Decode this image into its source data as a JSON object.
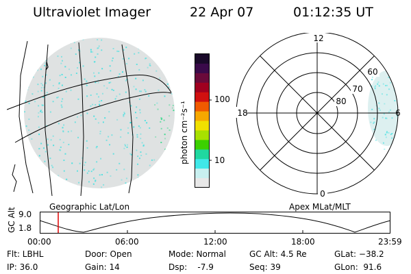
{
  "header": {
    "instrument": "Ultraviolet Imager",
    "date": "22 Apr 07",
    "time": "01:12:35 UT"
  },
  "colorbar": {
    "unit_label": "photon cm⁻²s⁻¹",
    "ticks": [
      "100",
      "10"
    ],
    "colors": [
      "#1a0a2a",
      "#3a0a4a",
      "#6a0a3a",
      "#a00020",
      "#d01010",
      "#f05a00",
      "#f6a800",
      "#f0e000",
      "#a8e000",
      "#3cd000",
      "#20d8a0",
      "#40e8e8",
      "#c8f0f0",
      "#e8e8e8"
    ]
  },
  "left_panel": {
    "caption": "Geographic Lat/Lon"
  },
  "right_panel": {
    "caption": "Apex MLat/MLT",
    "mlt_labels": {
      "top": "12",
      "left": "18",
      "right": "6",
      "bottom": "0"
    },
    "lat_labels": [
      "60",
      "70",
      "80"
    ]
  },
  "altitude_plot": {
    "ylabel": "GC Alt",
    "yticks": [
      "9.0",
      "1.8"
    ],
    "xticks": [
      "00:00",
      "06:00",
      "12:00",
      "18:00",
      "23:59"
    ],
    "current_marker_time": "01:12:35"
  },
  "status": {
    "row1": {
      "filter": "Flt: LBHL",
      "door": "Door: Open",
      "mode": "Mode: Normal",
      "gc_alt": "GC Alt: 4.5 Re",
      "glat": "GLat: −38.2"
    },
    "row2": {
      "ip": "IP: 36.0",
      "gain": "Gain: 14",
      "dsp": "Dsp:    -7.9",
      "seq": "Seq: 39",
      "glon": "GLon:  91.6"
    }
  },
  "accent_colors": {
    "aurora_cyan": "#30e0e0",
    "aurora_green": "#20d880",
    "background_gray": "#d8dcdc",
    "marker_red": "#e00000"
  }
}
